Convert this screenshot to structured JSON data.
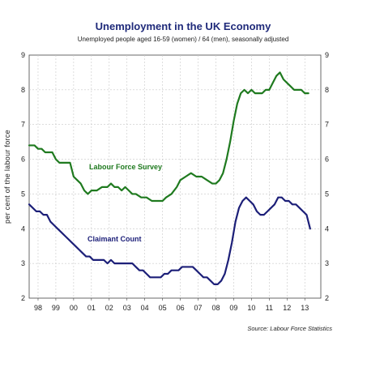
{
  "chart_data": {
    "type": "line",
    "title": "Unemployment in the UK Economy",
    "subtitle": "Unemployed people aged 16-59 (women) / 64 (men), seasonally adjusted",
    "ylabel": "per cent of the labour force",
    "source": "Source: Labour Force Statistics",
    "ylim": [
      2,
      9
    ],
    "yticks": [
      "2",
      "3",
      "4",
      "5",
      "6",
      "7",
      "8",
      "9"
    ],
    "xlim": [
      1997.5,
      2013.9
    ],
    "xticks": [
      {
        "label": "98",
        "x": 1998
      },
      {
        "label": "99",
        "x": 1999
      },
      {
        "label": "00",
        "x": 2000
      },
      {
        "label": "01",
        "x": 2001
      },
      {
        "label": "02",
        "x": 2002
      },
      {
        "label": "03",
        "x": 2003
      },
      {
        "label": "04",
        "x": 2004
      },
      {
        "label": "05",
        "x": 2005
      },
      {
        "label": "06",
        "x": 2006
      },
      {
        "label": "07",
        "x": 2007
      },
      {
        "label": "08",
        "x": 2008
      },
      {
        "label": "09",
        "x": 2009
      },
      {
        "label": "10",
        "x": 2010
      },
      {
        "label": "11",
        "x": 2011
      },
      {
        "label": "12",
        "x": 2012
      },
      {
        "label": "13",
        "x": 2013
      }
    ],
    "grid": true,
    "series": [
      {
        "name": "Labour Force Survey",
        "color": "#1f7a1f",
        "x": [
          1997.5,
          1997.8,
          1998.0,
          1998.2,
          1998.4,
          1998.6,
          1998.8,
          1999.0,
          1999.2,
          1999.5,
          1999.8,
          2000.0,
          2000.2,
          2000.4,
          2000.6,
          2000.8,
          2001.0,
          2001.3,
          2001.6,
          2001.9,
          2002.1,
          2002.3,
          2002.5,
          2002.7,
          2002.9,
          2003.1,
          2003.3,
          2003.5,
          2003.8,
          2004.1,
          2004.4,
          2004.7,
          2005.0,
          2005.2,
          2005.5,
          2005.8,
          2006.0,
          2006.3,
          2006.6,
          2006.9,
          2007.2,
          2007.5,
          2007.8,
          2008.0,
          2008.2,
          2008.4,
          2008.6,
          2008.8,
          2009.0,
          2009.2,
          2009.4,
          2009.6,
          2009.8,
          2010.0,
          2010.2,
          2010.4,
          2010.6,
          2010.8,
          2011.0,
          2011.2,
          2011.4,
          2011.6,
          2011.8,
          2012.0,
          2012.2,
          2012.4,
          2012.6,
          2012.8,
          2013.0,
          2013.2
        ],
        "values": [
          6.4,
          6.4,
          6.3,
          6.3,
          6.2,
          6.2,
          6.2,
          6.0,
          5.9,
          5.9,
          5.9,
          5.5,
          5.4,
          5.3,
          5.1,
          5.0,
          5.1,
          5.1,
          5.2,
          5.2,
          5.3,
          5.2,
          5.2,
          5.1,
          5.2,
          5.1,
          5.0,
          5.0,
          4.9,
          4.9,
          4.8,
          4.8,
          4.8,
          4.9,
          5.0,
          5.2,
          5.4,
          5.5,
          5.6,
          5.5,
          5.5,
          5.4,
          5.3,
          5.3,
          5.4,
          5.6,
          6.0,
          6.5,
          7.1,
          7.6,
          7.9,
          8.0,
          7.9,
          8.0,
          7.9,
          7.9,
          7.9,
          8.0,
          8.0,
          8.2,
          8.4,
          8.5,
          8.3,
          8.2,
          8.1,
          8.0,
          8.0,
          8.0,
          7.9,
          7.9
        ]
      },
      {
        "name": "Claimant Count",
        "color": "#1c1f78",
        "x": [
          1997.5,
          1997.7,
          1997.9,
          1998.1,
          1998.3,
          1998.5,
          1998.7,
          1998.9,
          1999.1,
          1999.3,
          1999.5,
          1999.7,
          1999.9,
          2000.1,
          2000.3,
          2000.5,
          2000.7,
          2000.9,
          2001.1,
          2001.3,
          2001.5,
          2001.7,
          2001.9,
          2002.1,
          2002.3,
          2002.5,
          2002.7,
          2002.9,
          2003.1,
          2003.3,
          2003.5,
          2003.7,
          2003.9,
          2004.1,
          2004.3,
          2004.5,
          2004.7,
          2004.9,
          2005.1,
          2005.3,
          2005.5,
          2005.7,
          2005.9,
          2006.1,
          2006.3,
          2006.5,
          2006.7,
          2006.9,
          2007.1,
          2007.3,
          2007.5,
          2007.7,
          2007.9,
          2008.1,
          2008.3,
          2008.5,
          2008.7,
          2008.9,
          2009.1,
          2009.3,
          2009.5,
          2009.7,
          2009.9,
          2010.1,
          2010.3,
          2010.5,
          2010.7,
          2010.9,
          2011.1,
          2011.3,
          2011.5,
          2011.7,
          2011.9,
          2012.1,
          2012.3,
          2012.5,
          2012.7,
          2012.9,
          2013.1,
          2013.3
        ],
        "values": [
          4.7,
          4.6,
          4.5,
          4.5,
          4.4,
          4.4,
          4.2,
          4.1,
          4.0,
          3.9,
          3.8,
          3.7,
          3.6,
          3.5,
          3.4,
          3.3,
          3.2,
          3.2,
          3.1,
          3.1,
          3.1,
          3.1,
          3.0,
          3.1,
          3.0,
          3.0,
          3.0,
          3.0,
          3.0,
          3.0,
          2.9,
          2.8,
          2.8,
          2.7,
          2.6,
          2.6,
          2.6,
          2.6,
          2.7,
          2.7,
          2.8,
          2.8,
          2.8,
          2.9,
          2.9,
          2.9,
          2.9,
          2.8,
          2.7,
          2.6,
          2.6,
          2.5,
          2.4,
          2.4,
          2.5,
          2.7,
          3.1,
          3.6,
          4.2,
          4.6,
          4.8,
          4.9,
          4.8,
          4.7,
          4.5,
          4.4,
          4.4,
          4.5,
          4.6,
          4.7,
          4.9,
          4.9,
          4.8,
          4.8,
          4.7,
          4.7,
          4.6,
          4.5,
          4.4,
          4.0
        ]
      }
    ],
    "annotations": [
      {
        "text": "Labour Force Survey",
        "series": 0
      },
      {
        "text": "Claimant Count",
        "series": 1
      }
    ]
  }
}
